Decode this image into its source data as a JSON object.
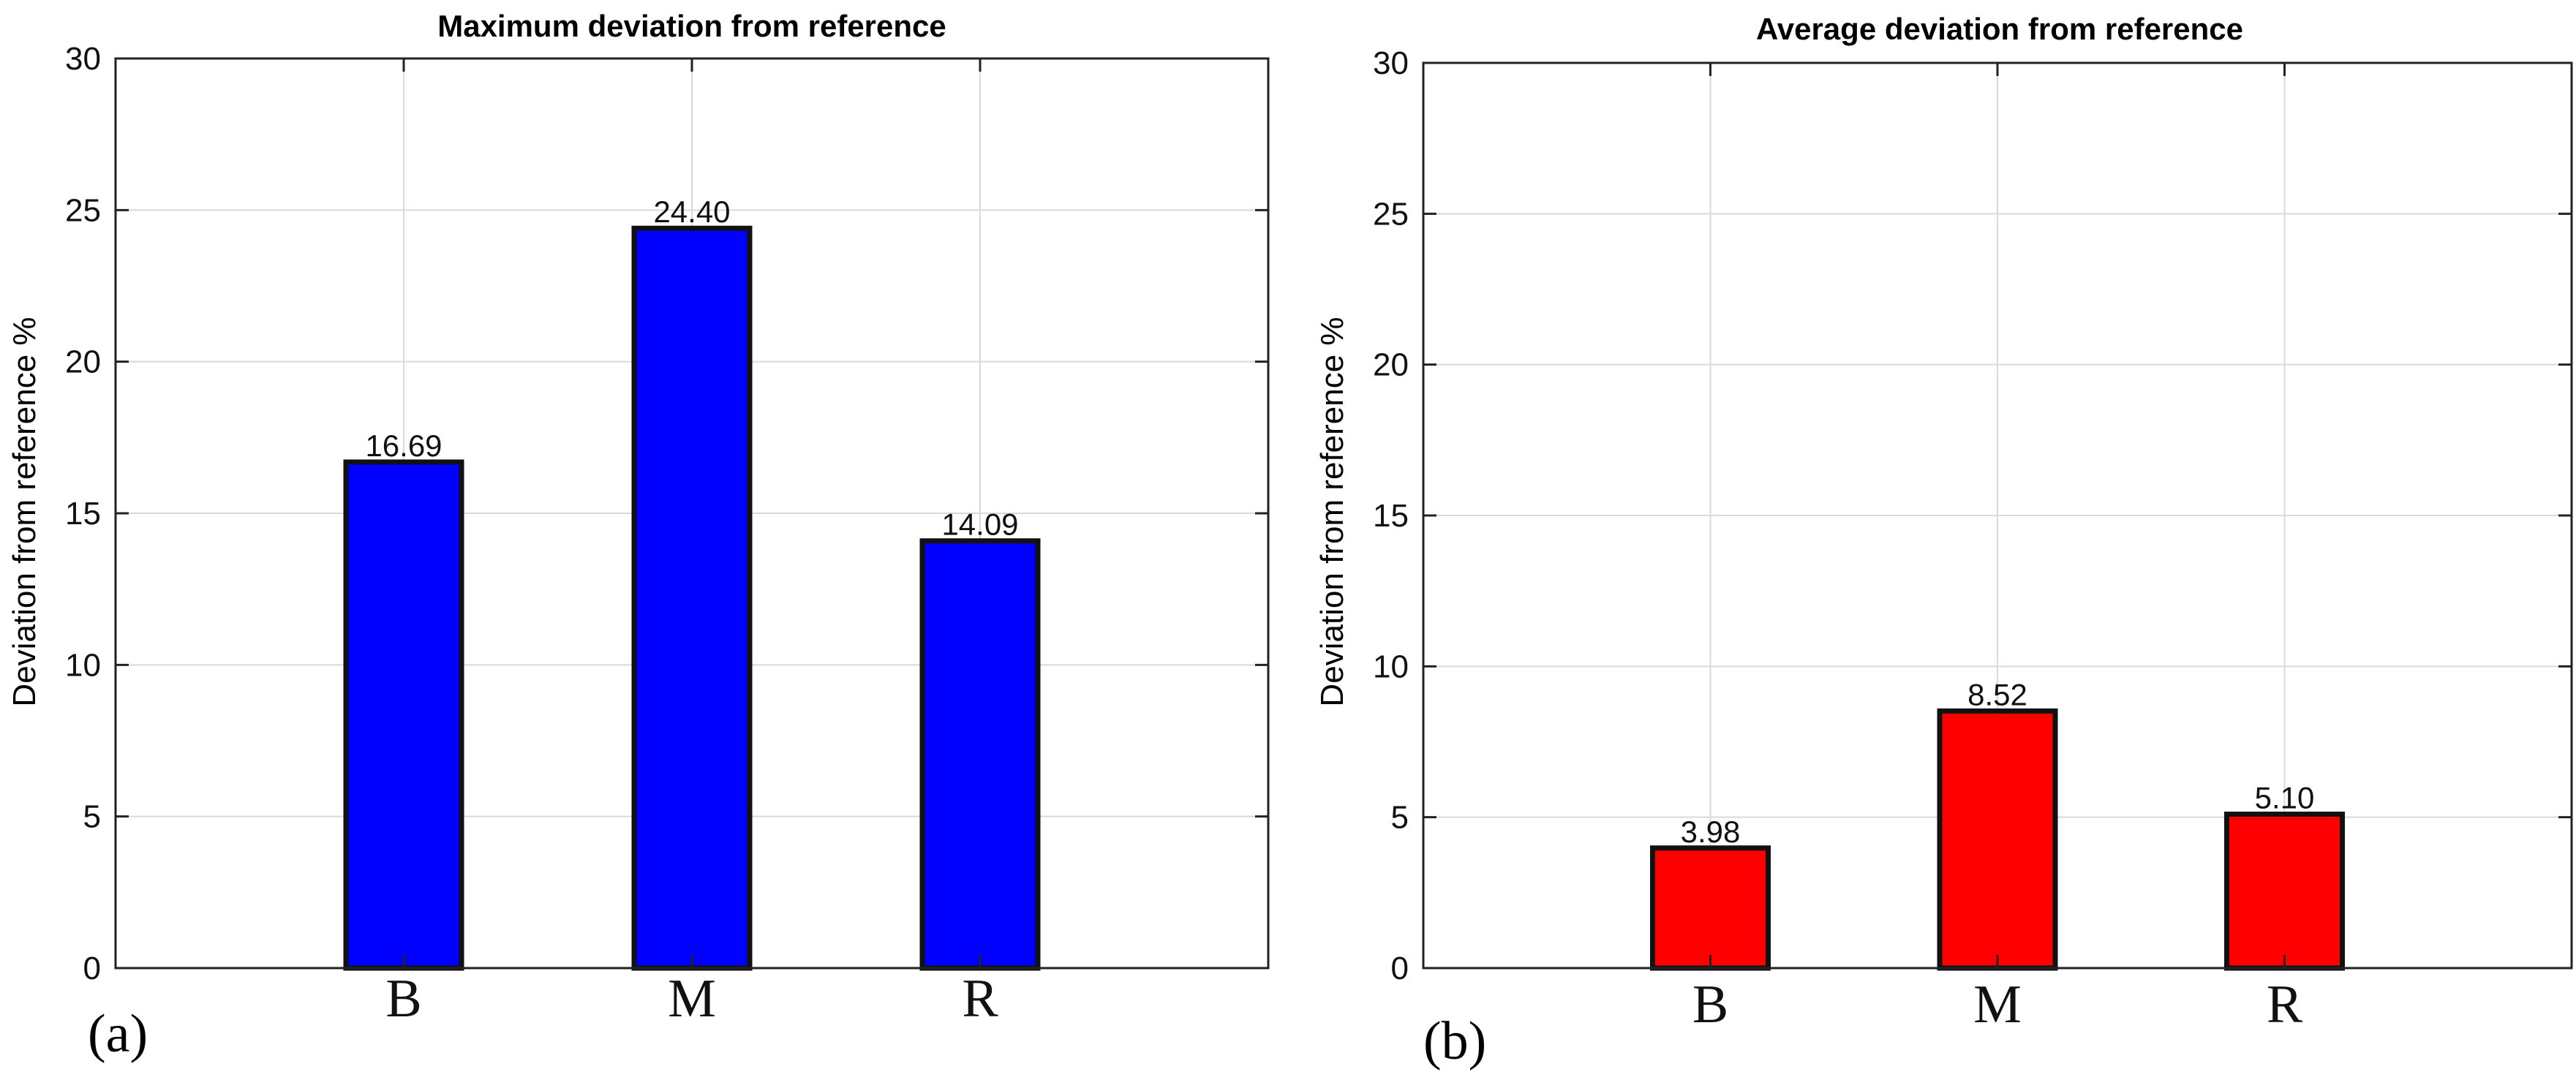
{
  "chart_data": [
    {
      "type": "bar",
      "title": "Maximum deviation from reference",
      "panel_label": "(a)",
      "categories": [
        "B",
        "M",
        "R"
      ],
      "values": [
        16.69,
        24.4,
        14.09
      ],
      "value_labels": [
        "16.69",
        "24.40",
        "14.09"
      ],
      "xlabel": "",
      "ylabel": "Deviation from reference %",
      "ylim": [
        0,
        30
      ],
      "yticks": [
        "0",
        "5",
        "10",
        "15",
        "20",
        "25",
        "30"
      ],
      "xlim": [
        0,
        4
      ],
      "grid": true,
      "bar_color": "#0000ff"
    },
    {
      "type": "bar",
      "title": "Average deviation from reference",
      "panel_label": "(b)",
      "categories": [
        "B",
        "M",
        "R"
      ],
      "values": [
        3.98,
        8.52,
        5.1
      ],
      "value_labels": [
        "3.98",
        "8.52",
        "5.10"
      ],
      "xlabel": "",
      "ylabel": "Deviation from reference %",
      "ylim": [
        0,
        30
      ],
      "yticks": [
        "0",
        "5",
        "10",
        "15",
        "20",
        "25",
        "30"
      ],
      "xlim": [
        0,
        4
      ],
      "grid": true,
      "bar_color": "#ff0000"
    }
  ]
}
